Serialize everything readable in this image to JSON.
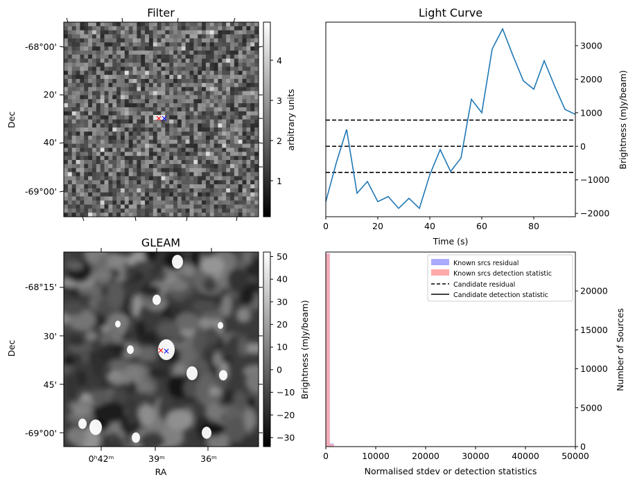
{
  "chart_data": [
    {
      "type": "heatmap",
      "title": "Filter",
      "xlabel": "",
      "ylabel": "Dec",
      "y_ticks": [
        "-68°00'",
        "20'",
        "40'",
        "-69°00'"
      ],
      "colorbar": {
        "label": "arbitrary units",
        "ticks": [
          "1",
          "2",
          "3",
          "4"
        ],
        "range": [
          0.1,
          4.9
        ],
        "colormap": "gray"
      },
      "markers": [
        {
          "symbol": "x",
          "color": "#ff0000"
        },
        {
          "symbol": "x",
          "color": "#0000ff"
        }
      ]
    },
    {
      "type": "line",
      "title": "Light Curve",
      "xlabel": "Time (s)",
      "ylabel": "Brightness (mJy/beam)",
      "xlim": [
        0,
        96
      ],
      "ylim": [
        -2100,
        3700
      ],
      "x_ticks": [
        0,
        20,
        40,
        60,
        80
      ],
      "y_ticks": [
        -2000,
        -1000,
        0,
        1000,
        2000,
        3000
      ],
      "series": [
        {
          "color": "#1f77b4",
          "x": [
            0,
            4,
            8,
            12,
            16,
            20,
            24,
            28,
            32,
            36,
            40,
            44,
            48,
            52,
            56,
            60,
            64,
            68,
            72,
            76,
            80,
            84,
            88,
            92,
            96
          ],
          "y": [
            -1650,
            -500,
            500,
            -1400,
            -1050,
            -1650,
            -1500,
            -1850,
            -1550,
            -1850,
            -850,
            -100,
            -750,
            -350,
            1400,
            1000,
            2900,
            3500,
            2700,
            1950,
            1700,
            2550,
            1800,
            1100,
            950
          ]
        }
      ],
      "hlines": [
        {
          "y": 780,
          "style": "dashed",
          "color": "#000000"
        },
        {
          "y": 0,
          "style": "dashed",
          "color": "#000000"
        },
        {
          "y": -780,
          "style": "dashed",
          "color": "#000000"
        }
      ]
    },
    {
      "type": "heatmap",
      "title": "GLEAM",
      "xlabel": "RA",
      "ylabel": "Dec",
      "x_ticks": [
        "0ʰ42ᵐ",
        "39ᵐ",
        "36ᵐ"
      ],
      "y_ticks": [
        "-68°15'",
        "30'",
        "45'",
        "-69°00'"
      ],
      "colorbar": {
        "label": "Brightness (mJy/beam)",
        "ticks": [
          "−30",
          "−20",
          "−10",
          "0",
          "10",
          "20",
          "30",
          "40",
          "50"
        ],
        "range": [
          -34,
          52
        ],
        "colormap": "gray"
      },
      "markers": [
        {
          "symbol": "x",
          "color": "#ff0000"
        },
        {
          "symbol": "x",
          "color": "#0000ff"
        }
      ]
    },
    {
      "type": "bar",
      "title": "",
      "xlabel": "Normalised stdev or detection statistics",
      "ylabel": "Number of Sources",
      "xlim": [
        0,
        50000
      ],
      "ylim": [
        0,
        25000
      ],
      "x_ticks": [
        0,
        10000,
        20000,
        30000,
        40000,
        50000
      ],
      "y_ticks": [
        0,
        5000,
        10000,
        15000,
        20000
      ],
      "series": [
        {
          "name": "Known srcs residual",
          "color": "#aaaaff",
          "bins": [
            [
              0,
              800,
              24800
            ],
            [
              800,
              1600,
              400
            ]
          ]
        },
        {
          "name": "Known srcs detection statistic",
          "color": "#ffaaaa",
          "bins": [
            [
              0,
              800,
              24800
            ],
            [
              800,
              1600,
              300
            ],
            [
              17000,
              18000,
              60
            ],
            [
              22000,
              23000,
              60
            ],
            [
              26000,
              27000,
              40
            ],
            [
              34500,
              35500,
              40
            ],
            [
              40000,
              41000,
              40
            ],
            [
              47000,
              48000,
              40
            ]
          ]
        },
        {
          "name": "Candidate residual",
          "style": "dashed",
          "color": "#000000"
        },
        {
          "name": "Candidate detection statistic",
          "style": "solid",
          "color": "#000000"
        }
      ],
      "legend": "top-right"
    }
  ]
}
